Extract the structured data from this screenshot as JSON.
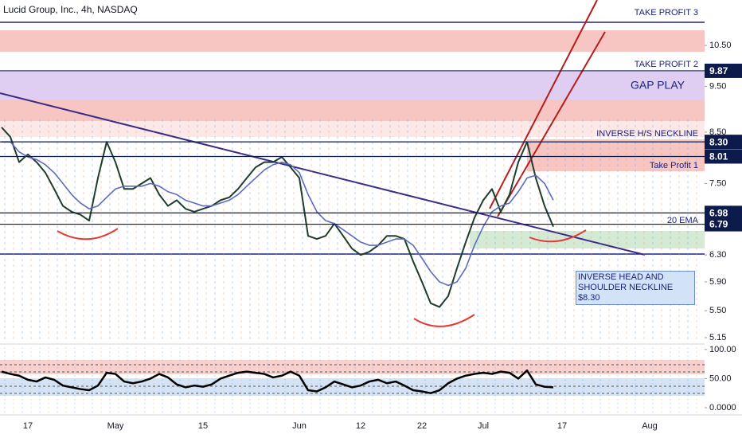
{
  "title": "Lucid Group, Inc., 4h, NASDAQ",
  "annotations": [
    "TAKE PROFIT 3",
    "TAKE PROFIT 2",
    "GAP PLAY",
    "INVERSE H/S NECKLINE",
    "Take Profit 1",
    "INVERSE HEAD AND SHOULDER NECKLINE $8.30"
  ],
  "chart_data": [
    {
      "type": "line",
      "log_scale": true,
      "categories": [
        null,
        null,
        null,
        "17",
        null,
        null,
        null,
        null,
        null,
        null,
        null,
        null,
        null,
        "May",
        null,
        null,
        null,
        null,
        null,
        null,
        null,
        null,
        null,
        "15",
        null,
        null,
        null,
        null,
        null,
        null,
        null,
        null,
        null,
        null,
        "Jun",
        null,
        null,
        null,
        null,
        null,
        null,
        "12",
        null,
        null,
        null,
        null,
        null,
        null,
        "22",
        null,
        null,
        null,
        null,
        null,
        null,
        "Jul",
        null,
        null,
        null,
        null,
        null,
        null,
        null,
        null,
        "17",
        null,
        null,
        null,
        null,
        null,
        null,
        null,
        null,
        null,
        "Aug",
        null,
        null,
        null,
        null,
        null,
        null
      ],
      "ylim": [
        5.09,
        11.73
      ],
      "yticks": [
        {
          "value": 10.5,
          "label": "10.50"
        },
        {
          "value": 9.5,
          "label": "9.50"
        },
        {
          "value": 8.5,
          "label": "8.50"
        },
        {
          "value": 7.5,
          "label": "7.50"
        },
        {
          "value": 6.3,
          "label": "6.30"
        },
        {
          "value": 5.9,
          "label": "5.90"
        },
        {
          "value": 5.5,
          "label": "5.50"
        },
        5.15
      ],
      "levels": [
        9.87,
        {
          "value": 8.3,
          "label": "8.30"
        },
        8.01,
        6.98,
        6.79
      ],
      "level_color": "#0d1b4c",
      "series": [
        {
          "color": "#1f3d2a",
          "values": [
            8.6,
            8.4,
            7.9,
            8.05,
            7.9,
            7.7,
            7.4,
            7.1,
            7.0,
            6.95,
            6.85,
            7.6,
            8.3,
            7.9,
            7.4,
            7.4,
            7.5,
            7.6,
            7.3,
            7.1,
            7.2,
            7.05,
            7.0,
            7.05,
            7.1,
            7.2,
            7.25,
            7.4,
            7.6,
            7.8,
            7.9,
            7.9,
            8.0,
            7.8,
            7.6,
            6.6,
            6.55,
            6.6,
            6.8,
            6.6,
            6.4,
            6.3,
            6.35,
            6.45,
            6.6,
            6.6,
            6.55,
            6.2,
            5.9,
            5.6,
            5.55,
            5.7,
            6.1,
            6.5,
            6.9,
            7.2,
            7.4,
            7.0,
            7.3,
            7.9,
            8.3,
            7.6,
            7.1,
            6.75,
            null,
            null,
            null,
            null,
            null,
            null,
            null,
            null,
            null,
            null,
            null,
            null,
            null,
            null,
            null,
            null,
            null
          ]
        },
        {
          "name": "20 EMA",
          "color": "#5c6bc0",
          "values": [
            8.3,
            8.3,
            8.1,
            8.0,
            7.95,
            7.85,
            7.7,
            7.5,
            7.3,
            7.15,
            7.05,
            7.1,
            7.25,
            7.4,
            7.45,
            7.45,
            7.45,
            7.5,
            7.45,
            7.35,
            7.3,
            7.2,
            7.15,
            7.1,
            7.1,
            7.15,
            7.2,
            7.3,
            7.45,
            7.6,
            7.75,
            7.85,
            7.9,
            7.85,
            7.7,
            7.3,
            7.0,
            6.85,
            6.8,
            6.7,
            6.6,
            6.5,
            6.45,
            6.45,
            6.5,
            6.55,
            6.55,
            6.45,
            6.25,
            6.05,
            5.9,
            5.85,
            5.9,
            6.1,
            6.45,
            6.75,
            7.0,
            7.1,
            7.15,
            7.35,
            7.6,
            7.65,
            7.5,
            7.2,
            null,
            null,
            null,
            null,
            null,
            null,
            null,
            null,
            null,
            null,
            null,
            null,
            null,
            null,
            null,
            null,
            null
          ]
        }
      ]
    },
    {
      "type": "line",
      "ylim": [
        -11,
        108
      ],
      "yticks": [
        {
          "value": 100,
          "label": "100.00"
        },
        {
          "value": 50,
          "label": "50.00"
        },
        {
          "value": 0,
          "label": "0.0000"
        }
      ],
      "color": "#000000",
      "values": [
        62,
        58,
        55,
        48,
        45,
        52,
        48,
        38,
        35,
        32,
        30,
        38,
        60,
        58,
        45,
        42,
        45,
        50,
        58,
        52,
        40,
        35,
        38,
        36,
        40,
        50,
        55,
        60,
        62,
        60,
        58,
        52,
        55,
        62,
        55,
        30,
        28,
        35,
        45,
        40,
        35,
        38,
        45,
        48,
        42,
        45,
        38,
        30,
        28,
        25,
        30,
        42,
        50,
        55,
        58,
        60,
        58,
        62,
        60,
        50,
        64,
        40,
        36,
        35,
        null,
        null,
        null,
        null,
        null,
        null,
        null,
        null,
        null,
        null,
        null,
        null,
        null,
        null,
        null,
        null,
        null
      ]
    }
  ]
}
